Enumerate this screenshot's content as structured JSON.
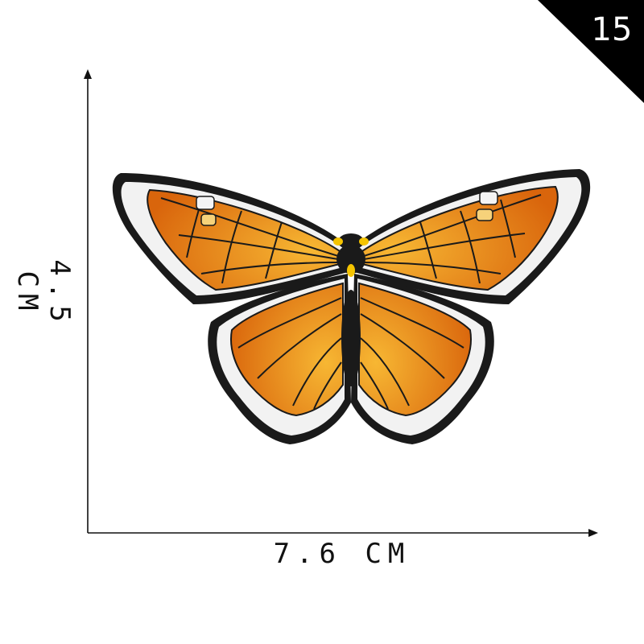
{
  "badge": {
    "number": "15",
    "color": "#000000"
  },
  "dimensions": {
    "width_label": "7.6 CM",
    "height_label": "4.5 CM"
  },
  "patch": {
    "subject": "butterfly",
    "colors": {
      "orange": "#e0760f",
      "yellow": "#f5b82a",
      "black": "#1a1a1a",
      "white": "#f2f2f2"
    }
  }
}
